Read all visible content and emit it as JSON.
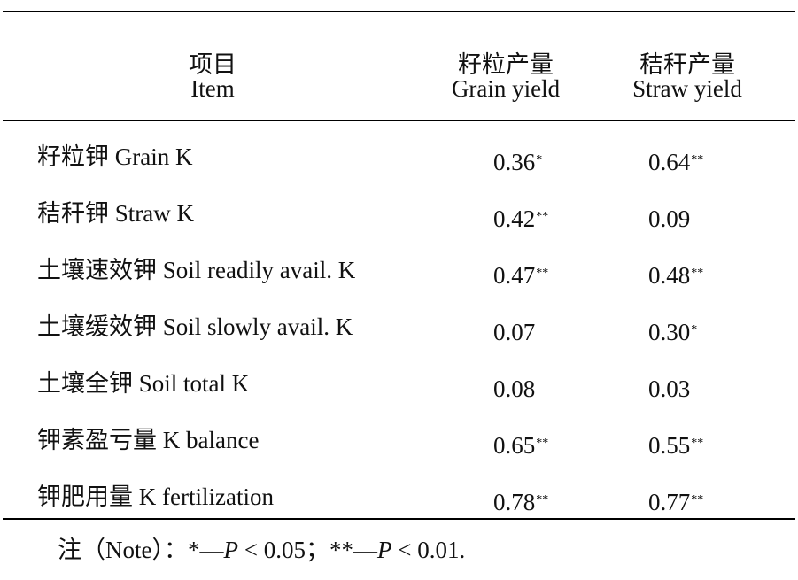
{
  "header": {
    "item_zh": "项目",
    "item_en": "Item",
    "grain_zh": "籽粒产量",
    "grain_en": "Grain yield",
    "straw_zh": "秸秆产量",
    "straw_en": "Straw yield"
  },
  "rows": [
    {
      "label": "籽粒钾 Grain K",
      "grain": "0.36",
      "grain_sig": "*",
      "straw": "0.64",
      "straw_sig": "**"
    },
    {
      "label": "秸秆钾 Straw K",
      "grain": "0.42",
      "grain_sig": "**",
      "straw": "0.09",
      "straw_sig": ""
    },
    {
      "label": "土壤速效钾 Soil readily avail. K",
      "grain": "0.47",
      "grain_sig": "**",
      "straw": "0.48",
      "straw_sig": "**"
    },
    {
      "label": "土壤缓效钾 Soil slowly avail. K",
      "grain": "0.07",
      "grain_sig": "",
      "straw": "0.30",
      "straw_sig": "*"
    },
    {
      "label": "土壤全钾 Soil total K",
      "grain": "0.08",
      "grain_sig": "",
      "straw": "0.03",
      "straw_sig": ""
    },
    {
      "label": "钾素盈亏量 K balance",
      "grain": "0.65",
      "grain_sig": "**",
      "straw": "0.55",
      "straw_sig": "**"
    },
    {
      "label": "钾肥用量 K fertilization",
      "grain": "0.78",
      "grain_sig": "**",
      "straw": "0.77",
      "straw_sig": "**"
    }
  ],
  "note": {
    "prefix": "注（Note）：",
    "sig1_mark": "*—",
    "p": "P",
    "sig1_cond": " < 0.05；",
    "sig2_mark": "**—",
    "sig2_cond": " < 0.01."
  }
}
